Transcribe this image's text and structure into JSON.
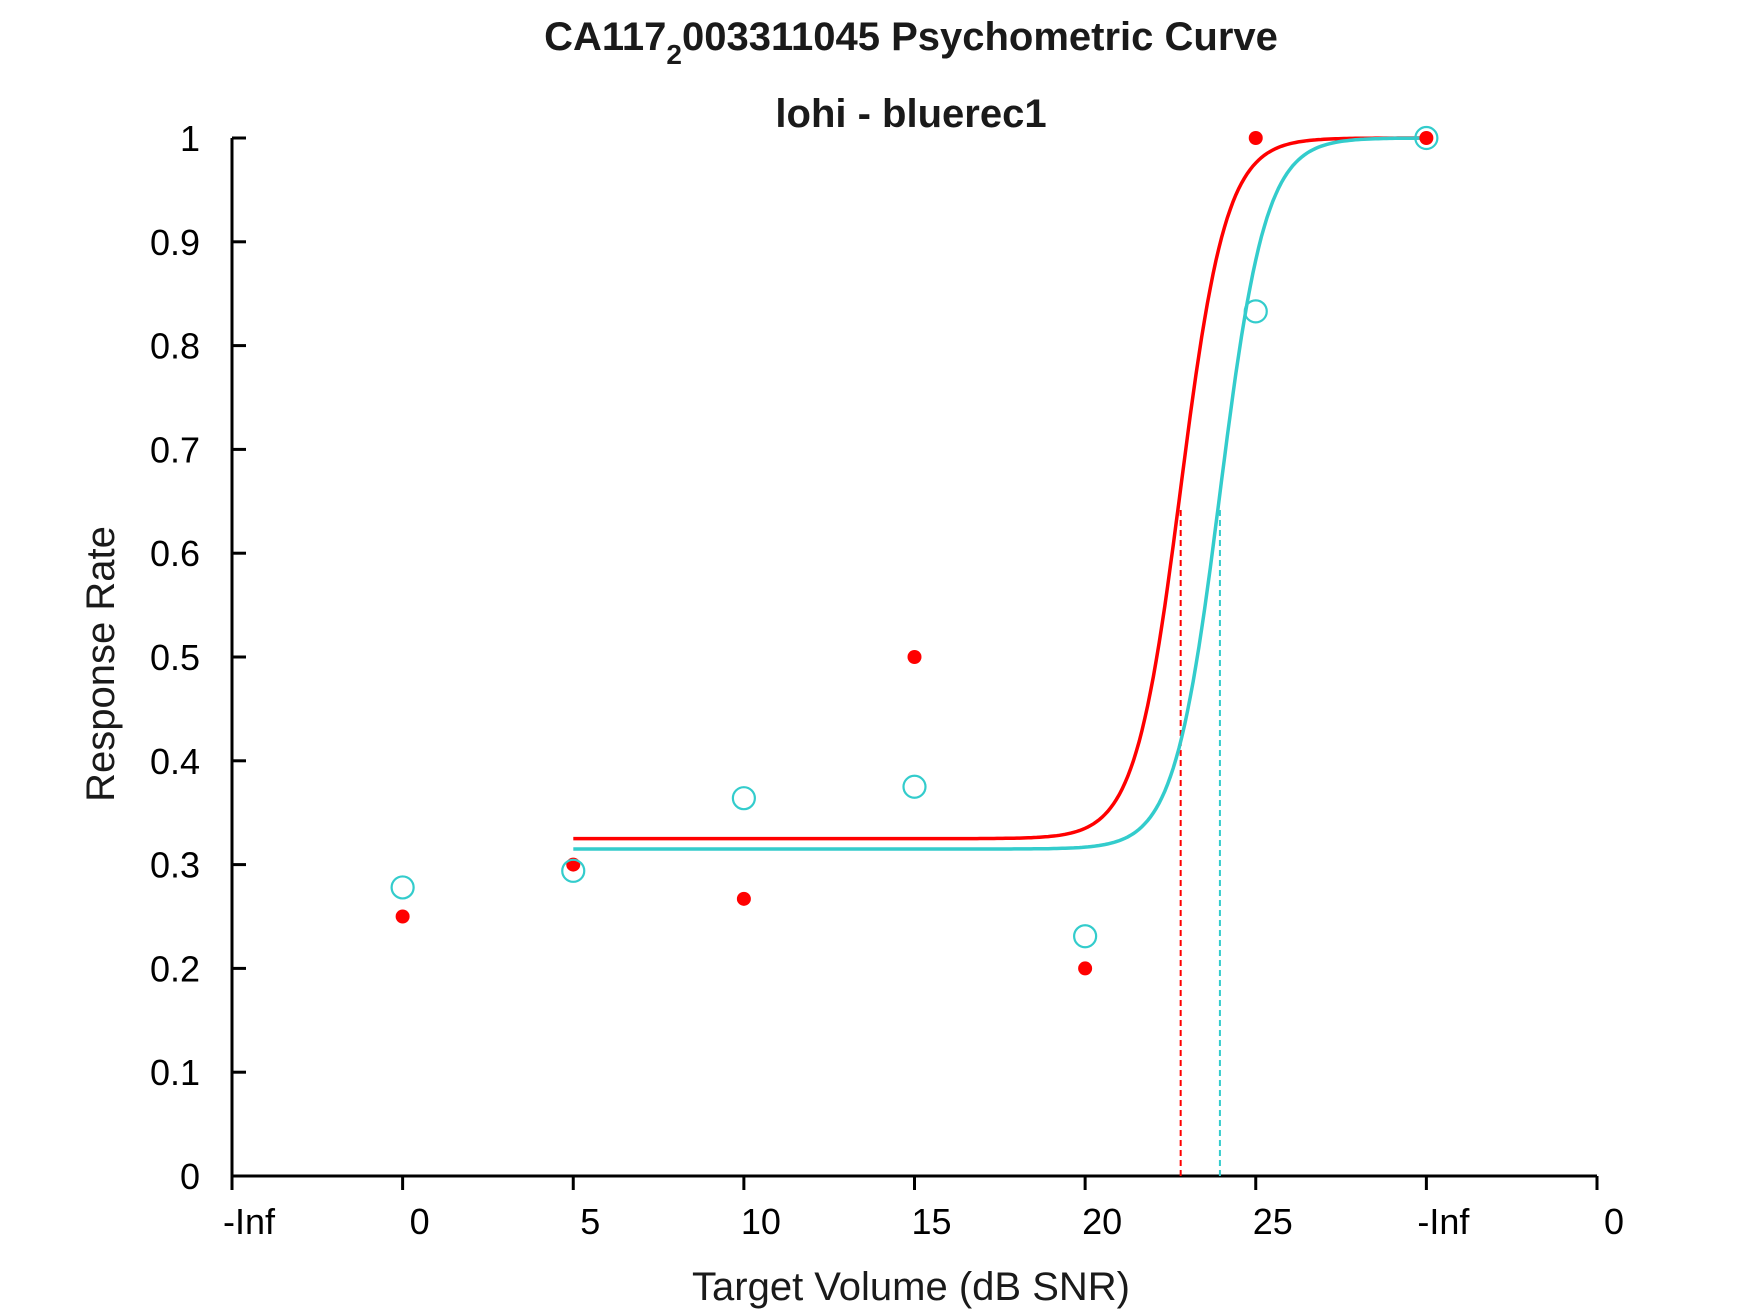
{
  "chart_data": {
    "type": "scatter",
    "title_main": "CA117",
    "title_sub": "2",
    "title_rest": "003311045 Psychometric Curve",
    "subtitle": "lohi - bluerec1",
    "xlabel": "Target Volume (dB SNR)",
    "ylabel": "Response Rate",
    "xlim": [
      -1,
      7
    ],
    "ylim": [
      0,
      1
    ],
    "x_ticks": [
      {
        "pos": -1,
        "label": "-Inf"
      },
      {
        "pos": 0,
        "label": "0"
      },
      {
        "pos": 1,
        "label": "5"
      },
      {
        "pos": 2,
        "label": "10"
      },
      {
        "pos": 3,
        "label": "15"
      },
      {
        "pos": 4,
        "label": "20"
      },
      {
        "pos": 5,
        "label": "25"
      },
      {
        "pos": 6,
        "label": "-Inf"
      },
      {
        "pos": 7,
        "label": "0"
      }
    ],
    "y_ticks": [
      {
        "pos": 0,
        "label": "0"
      },
      {
        "pos": 0.1,
        "label": "0.1"
      },
      {
        "pos": 0.2,
        "label": "0.2"
      },
      {
        "pos": 0.3,
        "label": "0.3"
      },
      {
        "pos": 0.4,
        "label": "0.4"
      },
      {
        "pos": 0.5,
        "label": "0.5"
      },
      {
        "pos": 0.6,
        "label": "0.6"
      },
      {
        "pos": 0.7,
        "label": "0.7"
      },
      {
        "pos": 0.8,
        "label": "0.8"
      },
      {
        "pos": 0.9,
        "label": "0.9"
      },
      {
        "pos": 1,
        "label": "1"
      }
    ],
    "grid": false,
    "series": [
      {
        "marker": "filled-circle",
        "color": "#ff0000",
        "points": [
          [
            0,
            0.25
          ],
          [
            1,
            0.3
          ],
          [
            2,
            0.267
          ],
          [
            3,
            0.5
          ],
          [
            4,
            0.2
          ],
          [
            5,
            1.0
          ],
          [
            6,
            1.0
          ]
        ],
        "fit": {
          "base": 0.325,
          "top": 1.0,
          "mid": 4.56,
          "slope": 7.5,
          "xrange": [
            1,
            6
          ]
        },
        "threshold_x": 4.56
      },
      {
        "marker": "open-circle",
        "color": "#33cccc",
        "points": [
          [
            0,
            0.278
          ],
          [
            1,
            0.294
          ],
          [
            2,
            0.364
          ],
          [
            3,
            0.375
          ],
          [
            4,
            0.231
          ],
          [
            5,
            0.833
          ],
          [
            6,
            1.0
          ]
        ],
        "fit": {
          "base": 0.315,
          "top": 1.0,
          "mid": 4.79,
          "slope": 7.5,
          "xrange": [
            1,
            6
          ]
        },
        "threshold_x": 4.79
      }
    ]
  }
}
